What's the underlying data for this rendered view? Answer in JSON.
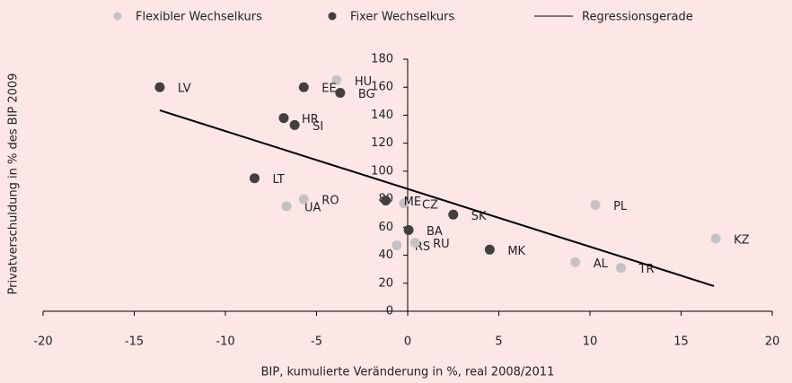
{
  "chart_data": {
    "type": "scatter",
    "xlabel": "BIP, kumulierte Veränderung in %, real 2008/2011",
    "ylabel": "Privatverschuldung in % des BIP 2009",
    "xlim": [
      -20,
      20
    ],
    "xticks": [
      -20,
      -15,
      -10,
      -5,
      0,
      5,
      10,
      15,
      20
    ],
    "ylim": [
      0,
      180
    ],
    "yticks": [
      0,
      20,
      40,
      60,
      80,
      100,
      120,
      140,
      160,
      180
    ],
    "series": [
      {
        "name": "Flexibler Wechselkurs",
        "color": "#c3c3c3",
        "labels": [
          "HU",
          "UA",
          "RO",
          "CZ",
          "RS",
          "RU",
          "PL",
          "AL",
          "TR",
          "KZ"
        ],
        "x": [
          -3.9,
          -6.65,
          -5.7,
          -0.2,
          -0.6,
          0.4,
          10.3,
          9.2,
          11.7,
          16.9
        ],
        "y": [
          165,
          75,
          80,
          77,
          47,
          49,
          76,
          35,
          31,
          52
        ]
      },
      {
        "name": "Fixer Wechselkurs",
        "color": "#404040",
        "labels": [
          "LV",
          "EE",
          "BG",
          "HR",
          "SI",
          "LT",
          "ME",
          "SK",
          "BA",
          "MK"
        ],
        "x": [
          -13.6,
          -5.7,
          -3.7,
          -6.8,
          -6.2,
          -8.4,
          -1.2,
          2.5,
          0.05,
          4.5
        ],
        "y": [
          160,
          160,
          156,
          138,
          133,
          95,
          79,
          69,
          58,
          44
        ]
      }
    ],
    "regression": {
      "name": "Regressionsgerade",
      "color": "#000000",
      "x": [
        -13.6,
        16.8
      ],
      "y": [
        143.5,
        18
      ]
    }
  }
}
